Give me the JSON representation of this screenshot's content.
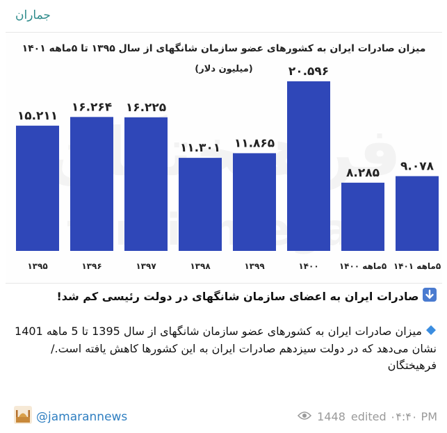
{
  "channel": {
    "name": "جماران"
  },
  "chart_data": {
    "type": "bar",
    "title": "میزان صادرات ایران به کشورهای عضو سازمان شانگهای از سال ۱۳۹۵ تا ۵ماهه ۱۴۰۱",
    "subtitle": "(میلیون دلار)",
    "categories": [
      "۱۳۹۵",
      "۱۳۹۶",
      "۱۳۹۷",
      "۱۳۹۸",
      "۱۳۹۹",
      "۱۴۰۰",
      "۵ماهه ۱۴۰۰",
      "۵ماهه ۱۴۰۱"
    ],
    "value_labels": [
      "۱۵.۲۱۱",
      "۱۶.۲۶۴",
      "۱۶.۲۲۵",
      "۱۱.۳۰۱",
      "۱۱.۸۶۵",
      "۲۰.۵۹۶",
      "۸.۲۸۵",
      "۹.۰۷۸"
    ],
    "values": [
      15.211,
      16.264,
      16.225,
      11.301,
      11.865,
      20.596,
      8.285,
      9.078
    ],
    "ylim": [
      0,
      20.596
    ],
    "bar_color": "#2f47b8",
    "watermark": [
      "فرهیختگان",
      "farhikhtegan"
    ]
  },
  "post": {
    "headline_icon": "down-arrow-icon",
    "headline": "صادرات ایران به اعضای سازمان شانگهای در دولت رئیسی کم شد!",
    "body_icon": "blue-diamond-icon",
    "body": "میزان صادرات ایران به کشورهای عضو سازمان شانگهای از سال 1395 تا 5 ماهه 1401 نشان می‌دهد که در دولت سیزدهم صادرات ایران به این کشورها کاهش یافته است./ فرهیختگان"
  },
  "footer": {
    "signature": "@jamarannews",
    "signature_icon": "mosque-icon",
    "views": "1448",
    "view_icon": "eye-icon",
    "edited": "edited ۰۴:۴۰ PM"
  }
}
